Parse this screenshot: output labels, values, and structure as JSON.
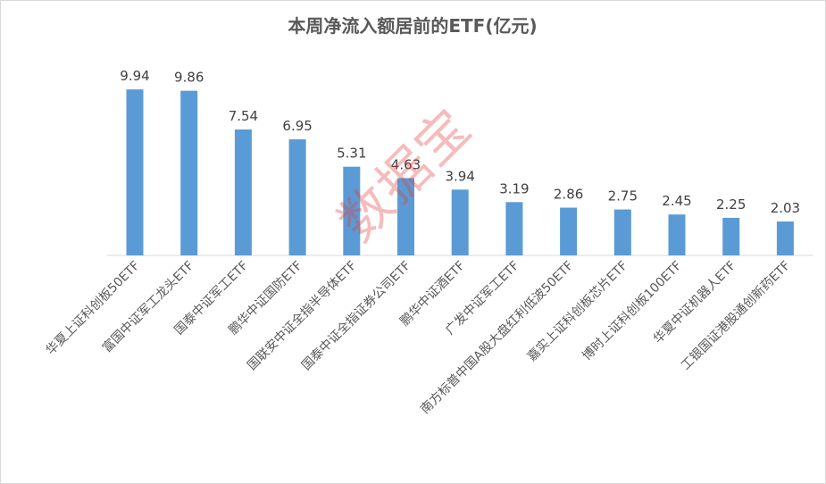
{
  "chart_data": {
    "type": "bar",
    "title": "本周净流入额居前的ETF(亿元)",
    "xlabel": "",
    "ylabel": "",
    "ylim": [
      0,
      10
    ],
    "grid": false,
    "categories": [
      "华夏上证科创板50ETF",
      "富国中证军工龙头ETF",
      "国泰中证军工ETF",
      "鹏华中证国防ETF",
      "国联安中证全指半导体ETF",
      "国泰中证全指证券公司ETF",
      "鹏华中证酒ETF",
      "广发中证军工ETF",
      "南方标普中国A股大盘红利低波50ETF",
      "嘉实上证科创板芯片ETF",
      "博时上证科创板100ETF",
      "华夏中证机器人ETF",
      "工银国证港股通创新药ETF"
    ],
    "values": [
      9.94,
      9.86,
      7.54,
      6.95,
      5.31,
      4.63,
      3.94,
      3.19,
      2.86,
      2.75,
      2.45,
      2.25,
      2.03
    ],
    "bar_color": "#5B9BD5"
  },
  "watermark": "数据宝"
}
